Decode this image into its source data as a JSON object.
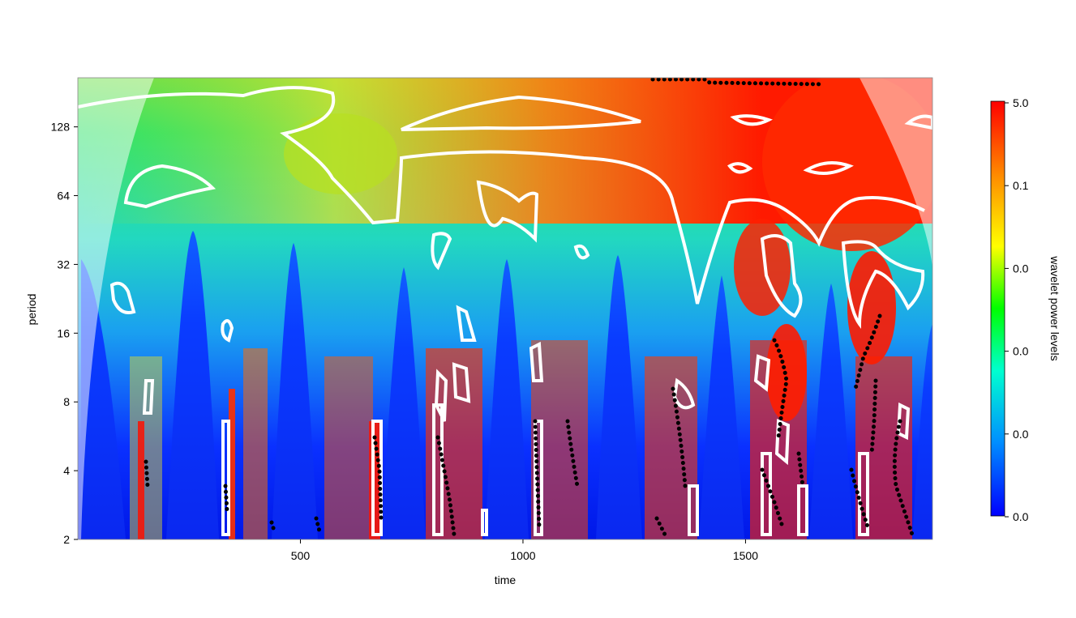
{
  "chart_data": {
    "type": "heatmap",
    "title": "",
    "xlabel": "time",
    "ylabel": "period",
    "x_ticks": [
      500,
      1000,
      1500
    ],
    "x_range": [
      0,
      1920
    ],
    "y_ticks": [
      2,
      4,
      8,
      16,
      32,
      64,
      128
    ],
    "y_range": [
      2,
      210
    ],
    "y_scale": "log2",
    "legend": {
      "label": "wavelet power levels",
      "tick_labels": [
        "5.0",
        "0.1",
        "0.0",
        "0.0",
        "0.0",
        "0.0"
      ],
      "colors": [
        "#ff0000",
        "#ff8c00",
        "#ffff00",
        "#00ff00",
        "#00ffd0",
        "#0090ff",
        "#0000ff"
      ],
      "placement": "right"
    },
    "annotations": [
      "white contours: significance regions",
      "black dots: ridges",
      "faded region: cone of influence"
    ]
  }
}
